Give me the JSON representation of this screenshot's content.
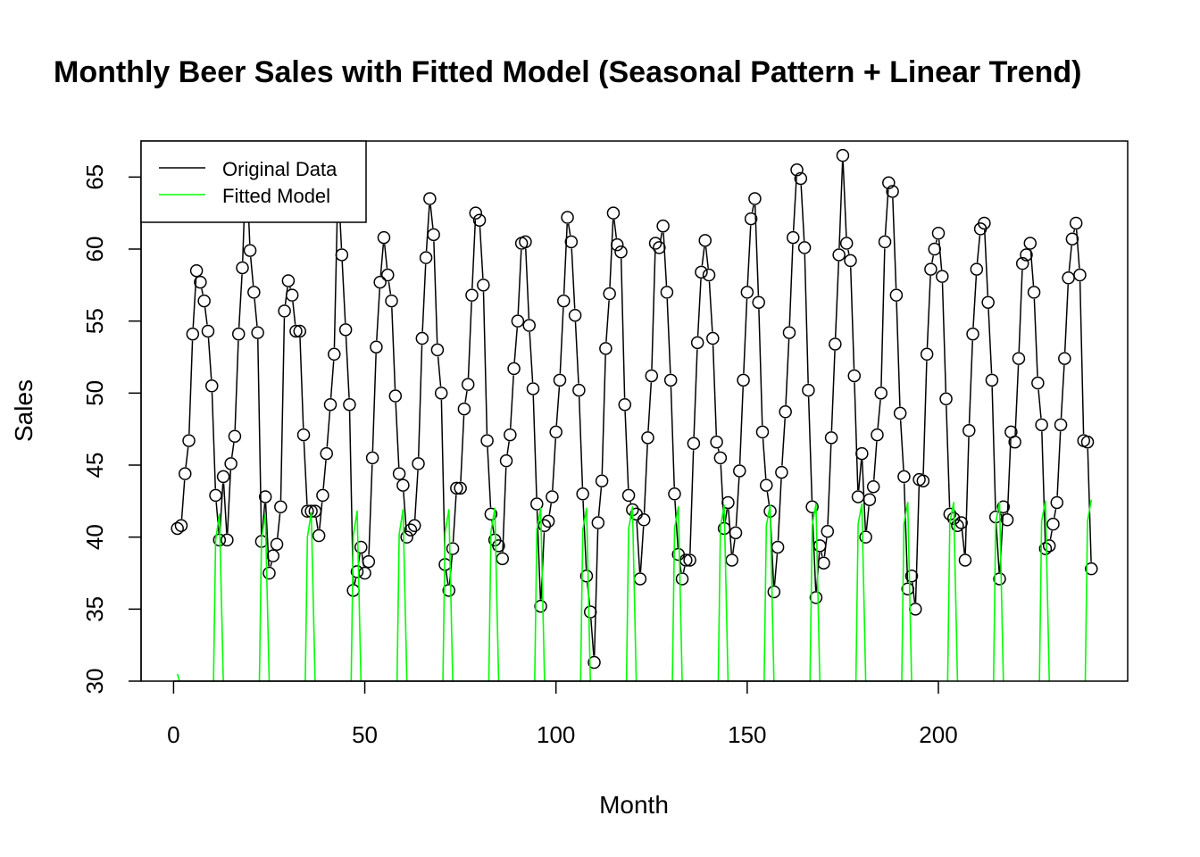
{
  "chart_data": {
    "type": "line",
    "title": "Monthly Beer Sales with Fitted Model (Seasonal Pattern + Linear Trend)",
    "xlabel": "Month",
    "ylabel": "Sales",
    "xlim": [
      -8.5,
      249.5
    ],
    "ylim": [
      30,
      67.5
    ],
    "x_ticks": [
      0,
      50,
      100,
      150,
      200
    ],
    "y_ticks": [
      30,
      35,
      40,
      45,
      50,
      55,
      60,
      65
    ],
    "legend_position": "top-left",
    "grid": false,
    "series": [
      {
        "name": "Original Data",
        "color": "#000000",
        "style": "line+open-circles",
        "x": [
          1,
          2,
          3,
          4,
          5,
          6,
          7,
          8,
          9,
          10,
          11,
          12,
          13,
          14,
          15,
          16,
          17,
          18,
          19,
          20,
          21,
          22,
          23,
          24,
          25,
          26,
          27,
          28,
          29,
          30,
          31,
          32,
          33,
          34,
          35,
          36,
          37,
          38,
          39,
          40,
          41,
          42,
          43,
          44,
          45,
          46,
          47,
          48,
          49,
          50,
          51,
          52,
          53,
          54,
          55,
          56,
          57,
          58,
          59,
          60,
          61,
          62,
          63,
          64,
          65,
          66,
          67,
          68,
          69,
          70,
          71,
          72,
          73,
          74,
          75,
          76,
          77,
          78,
          79,
          80,
          81,
          82,
          83,
          84,
          85,
          86,
          87,
          88,
          89,
          90,
          91,
          92,
          93,
          94,
          95,
          96,
          97,
          98,
          99,
          100,
          101,
          102,
          103,
          104,
          105,
          106,
          107,
          108,
          109,
          110,
          111,
          112,
          113,
          114,
          115,
          116,
          117,
          118,
          119,
          120,
          121,
          122,
          123,
          124,
          125,
          126,
          127,
          128,
          129,
          130,
          131,
          132,
          133,
          134,
          135,
          136,
          137,
          138,
          139,
          140,
          141,
          142,
          143,
          144,
          145,
          146,
          147,
          148,
          149,
          150,
          151,
          152,
          153,
          154,
          155,
          156,
          157,
          158,
          159,
          160,
          161,
          162,
          163,
          164,
          165,
          166,
          167,
          168,
          169,
          170,
          171,
          172,
          173,
          174,
          175,
          176,
          177,
          178,
          179,
          180,
          181,
          182,
          183,
          184,
          185,
          186,
          187,
          188,
          189,
          190,
          191,
          192,
          193,
          194,
          195,
          196,
          197,
          198,
          199,
          200,
          201,
          202,
          203,
          204,
          205,
          206,
          207,
          208,
          209,
          210,
          211,
          212,
          213,
          214,
          215,
          216,
          217,
          218,
          219,
          220,
          221,
          222,
          223,
          224,
          225,
          226,
          227,
          228,
          229,
          230,
          231,
          232,
          233,
          234,
          235,
          236,
          237,
          238,
          239,
          240
        ],
        "y": [
          40.6,
          40.8,
          44.4,
          46.7,
          54.1,
          58.5,
          57.7,
          56.4,
          54.3,
          50.5,
          42.9,
          39.8,
          44.2,
          39.8,
          45.1,
          47.0,
          54.1,
          58.7,
          66.3,
          59.9,
          57.0,
          54.2,
          39.7,
          42.8,
          37.5,
          38.7,
          39.5,
          42.1,
          55.7,
          57.8,
          56.8,
          54.3,
          54.3,
          47.1,
          41.8,
          41.8,
          41.8,
          40.1,
          42.9,
          45.8,
          49.2,
          52.7,
          64.8,
          59.6,
          54.4,
          49.2,
          36.3,
          37.6,
          39.3,
          37.5,
          38.3,
          45.5,
          53.2,
          57.7,
          60.8,
          58.2,
          56.4,
          49.8,
          44.4,
          43.6,
          40.0,
          40.5,
          40.8,
          45.1,
          53.8,
          59.4,
          63.5,
          61.0,
          53.0,
          50.0,
          38.1,
          36.3,
          39.2,
          43.4,
          43.4,
          48.9,
          50.6,
          56.8,
          62.5,
          62.0,
          57.5,
          46.7,
          41.6,
          39.8,
          39.4,
          38.5,
          45.3,
          47.1,
          51.7,
          55.0,
          60.4,
          60.5,
          54.7,
          50.3,
          42.3,
          35.2,
          40.8,
          41.1,
          42.8,
          47.3,
          50.9,
          56.4,
          62.2,
          60.5,
          55.4,
          50.2,
          43.0,
          37.3,
          34.8,
          31.3,
          41.0,
          43.9,
          53.1,
          56.9,
          62.5,
          60.3,
          59.8,
          49.2,
          42.9,
          41.9,
          41.6,
          37.1,
          41.2,
          46.9,
          51.2,
          60.4,
          60.1,
          61.6,
          57.0,
          50.9,
          43.0,
          38.8,
          37.1,
          38.4,
          38.4,
          46.5,
          53.5,
          58.4,
          60.6,
          58.2,
          53.8,
          46.6,
          45.5,
          40.6,
          42.4,
          38.4,
          40.3,
          44.6,
          50.9,
          57.0,
          62.1,
          63.5,
          56.3,
          47.3,
          43.6,
          41.8,
          36.2,
          39.3,
          44.5,
          48.7,
          54.2,
          60.8,
          65.5,
          64.9,
          60.1,
          50.2,
          42.1,
          35.8,
          39.4,
          38.2,
          40.4,
          46.9,
          53.4,
          59.6,
          66.5,
          60.4,
          59.2,
          51.2,
          42.8,
          45.8,
          40.0,
          42.6,
          43.5,
          47.1,
          50.0,
          60.5,
          64.6,
          64.0,
          56.8,
          48.6,
          44.2,
          36.4,
          37.3,
          35.0,
          44.0,
          43.9,
          52.7,
          58.6,
          60.0,
          61.1,
          58.1,
          49.6,
          41.6,
          41.3,
          40.8,
          41.0,
          38.4,
          47.4,
          54.1,
          58.6,
          61.4,
          61.8,
          56.3,
          50.9,
          41.4,
          37.1,
          42.1,
          41.2,
          47.3,
          46.6,
          52.4,
          59.0,
          59.6,
          60.4,
          57.0,
          50.7,
          47.8,
          39.2,
          39.4,
          40.9,
          42.4,
          47.8,
          52.4,
          58.0,
          60.7,
          61.8,
          58.2,
          46.7,
          46.6,
          37.8
        ]
      },
      {
        "name": "Fitted Model",
        "color": "#00ff00",
        "style": "line",
        "x": [
          1,
          10,
          11,
          12,
          13,
          22,
          23,
          24,
          25,
          34,
          35,
          36,
          37,
          46,
          47,
          48,
          49,
          58,
          59,
          60,
          61,
          70,
          71,
          72,
          73,
          82,
          83,
          84,
          85,
          94,
          95,
          96,
          97,
          106,
          107,
          108,
          109,
          118,
          119,
          120,
          121,
          130,
          131,
          132,
          133,
          142,
          143,
          144,
          145,
          154,
          155,
          156,
          157,
          166,
          167,
          168,
          169,
          178,
          179,
          180,
          181,
          190,
          191,
          192,
          193,
          202,
          203,
          204,
          205,
          214,
          215,
          216,
          217,
          226,
          227,
          228,
          229,
          238,
          239,
          240
        ],
        "y": [
          30.5,
          22.0,
          39.8,
          41.6,
          30.0,
          22.0,
          39.9,
          41.6,
          30.0,
          22.0,
          40.0,
          41.7,
          30.0,
          22.0,
          40.1,
          41.8,
          30.0,
          22.0,
          40.2,
          41.9,
          30.0,
          22.0,
          40.3,
          41.9,
          30.0,
          22.0,
          40.4,
          42.0,
          30.0,
          22.0,
          40.5,
          42.0,
          30.0,
          22.0,
          40.5,
          42.0,
          30.0,
          22.0,
          40.6,
          42.1,
          30.0,
          22.0,
          40.6,
          42.1,
          30.0,
          22.0,
          40.7,
          42.2,
          30.0,
          22.0,
          40.8,
          42.2,
          30.0,
          22.0,
          40.8,
          42.3,
          30.0,
          22.0,
          40.9,
          42.3,
          30.0,
          22.0,
          40.9,
          42.4,
          30.0,
          22.0,
          41.0,
          42.4,
          30.0,
          22.0,
          41.0,
          42.4,
          30.0,
          22.0,
          41.1,
          42.5,
          30.0,
          22.0,
          41.1,
          42.6
        ]
      }
    ]
  }
}
